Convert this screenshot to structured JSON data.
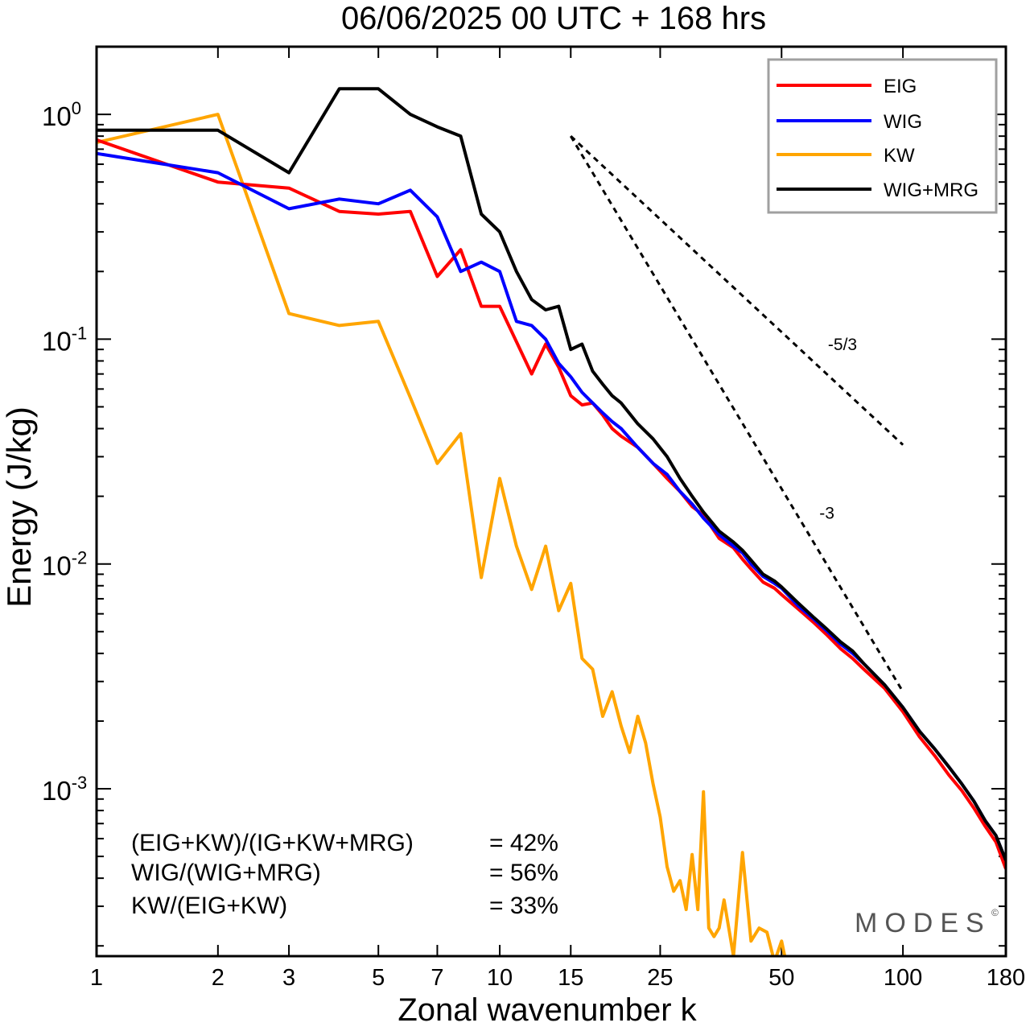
{
  "chart_data": {
    "type": "line",
    "title": "06/06/2025  00 UTC  + 168 hrs",
    "xlabel": "Zonal wavenumber k",
    "ylabel": "Energy (J/kg)",
    "xscale": "log",
    "yscale": "log",
    "xlim": [
      1,
      180
    ],
    "ylim": [
      0.00018,
      2.0
    ],
    "xticks": [
      1,
      2,
      3,
      5,
      7,
      10,
      15,
      25,
      50,
      100,
      180
    ],
    "xtick_labels": [
      "1",
      "2",
      "3",
      "5",
      "7",
      "10",
      "15",
      "25",
      "50",
      "100",
      "180"
    ],
    "ytick_labels": [
      {
        "value": 1,
        "base": "10",
        "exp": "0"
      },
      {
        "value": 0.1,
        "base": "10",
        "exp": "-1"
      },
      {
        "value": 0.01,
        "base": "10",
        "exp": "-2"
      },
      {
        "value": 0.001,
        "base": "10",
        "exp": "-3"
      }
    ],
    "legend_position": "top-right",
    "series": [
      {
        "name": "EIG",
        "color": "#ff0000",
        "x": [
          1,
          2,
          3,
          4,
          5,
          6,
          7,
          8,
          9,
          10,
          12,
          13,
          14,
          15,
          16,
          17,
          18,
          19,
          20,
          22,
          24,
          26,
          28,
          30,
          32,
          35,
          38,
          40,
          42,
          45,
          48,
          50,
          55,
          60,
          65,
          70,
          75,
          80,
          90,
          100,
          110,
          120,
          130,
          140,
          150,
          160,
          170,
          180
        ],
        "y": [
          0.77,
          0.5,
          0.47,
          0.37,
          0.36,
          0.37,
          0.19,
          0.25,
          0.14,
          0.14,
          0.07,
          0.095,
          0.075,
          0.056,
          0.051,
          0.052,
          0.046,
          0.04,
          0.037,
          0.033,
          0.028,
          0.024,
          0.021,
          0.018,
          0.0165,
          0.013,
          0.0118,
          0.0105,
          0.0095,
          0.0083,
          0.0078,
          0.0073,
          0.0063,
          0.0055,
          0.0048,
          0.0042,
          0.0038,
          0.0034,
          0.0028,
          0.0022,
          0.0017,
          0.0014,
          0.00115,
          0.00098,
          0.00082,
          0.00068,
          0.00058,
          0.00044
        ]
      },
      {
        "name": "WIG",
        "color": "#0000ff",
        "x": [
          1,
          2,
          3,
          4,
          5,
          6,
          7,
          8,
          9,
          10,
          11,
          12,
          13,
          14,
          15,
          16,
          17,
          18,
          19,
          20,
          22,
          24,
          26,
          28,
          30,
          32,
          35,
          38,
          40,
          42,
          45,
          48,
          50,
          55,
          60,
          65,
          70,
          75,
          80,
          90,
          100,
          110,
          120,
          130,
          140,
          150,
          160,
          170,
          180
        ],
        "y": [
          0.67,
          0.55,
          0.38,
          0.42,
          0.4,
          0.46,
          0.35,
          0.2,
          0.22,
          0.2,
          0.12,
          0.115,
          0.1,
          0.078,
          0.068,
          0.058,
          0.052,
          0.047,
          0.043,
          0.04,
          0.033,
          0.028,
          0.025,
          0.021,
          0.0185,
          0.016,
          0.0135,
          0.012,
          0.0112,
          0.01,
          0.0088,
          0.0082,
          0.0078,
          0.0065,
          0.0057,
          0.005,
          0.0044,
          0.004,
          0.0036,
          0.0029,
          0.0023,
          0.0018,
          0.0015,
          0.00125,
          0.00105,
          0.00088,
          0.00072,
          0.00062,
          0.00048
        ]
      },
      {
        "name": "KW",
        "color": "#ffa500",
        "x": [
          1,
          2,
          3,
          4,
          5,
          6,
          7,
          8,
          9,
          10,
          11,
          12,
          13,
          14,
          15,
          16,
          17,
          18,
          19,
          20,
          21,
          22,
          23,
          24,
          25,
          26,
          27,
          28,
          29,
          30,
          31,
          32,
          33,
          34,
          35,
          36,
          38,
          40,
          42,
          44,
          46,
          48,
          50,
          52,
          55
        ],
        "y": [
          0.75,
          1.0,
          0.13,
          0.115,
          0.12,
          0.055,
          0.028,
          0.038,
          0.0087,
          0.024,
          0.012,
          0.0077,
          0.012,
          0.0062,
          0.0082,
          0.0038,
          0.0034,
          0.0021,
          0.0027,
          0.0019,
          0.00145,
          0.0021,
          0.0016,
          0.00105,
          0.00075,
          0.00045,
          0.00035,
          0.00039,
          0.00029,
          0.00051,
          0.00029,
          0.00097,
          0.00024,
          0.00022,
          0.00024,
          0.00032,
          0.00018,
          0.00052,
          0.00021,
          0.00024,
          0.00023,
          0.00017,
          0.00021,
          0.00015,
          0.00014
        ]
      },
      {
        "name": "WIG+MRG",
        "color": "#000000",
        "x": [
          1,
          2,
          3,
          4,
          5,
          6,
          7,
          8,
          9,
          10,
          11,
          12,
          13,
          14,
          15,
          16,
          17,
          18,
          19,
          20,
          22,
          24,
          26,
          28,
          30,
          32,
          35,
          38,
          40,
          42,
          45,
          48,
          50,
          55,
          60,
          65,
          70,
          75,
          80,
          90,
          100,
          110,
          120,
          130,
          140,
          150,
          160,
          170,
          180
        ],
        "y": [
          0.85,
          0.85,
          0.55,
          1.3,
          1.3,
          1.0,
          0.88,
          0.8,
          0.36,
          0.3,
          0.2,
          0.15,
          0.135,
          0.14,
          0.09,
          0.095,
          0.072,
          0.063,
          0.056,
          0.052,
          0.042,
          0.036,
          0.03,
          0.024,
          0.02,
          0.017,
          0.014,
          0.0125,
          0.0115,
          0.0104,
          0.009,
          0.0084,
          0.0079,
          0.0067,
          0.0058,
          0.0051,
          0.0045,
          0.0041,
          0.0036,
          0.0029,
          0.0023,
          0.0018,
          0.0015,
          0.00125,
          0.00105,
          0.00088,
          0.00072,
          0.00062,
          0.00048
        ]
      }
    ],
    "annotations": [
      {
        "text": "-5/3",
        "slope": -1.6667,
        "x_range": [
          15,
          100
        ],
        "y_start": 0.8
      },
      {
        "text": "-3",
        "slope": -3,
        "x_range": [
          15,
          100
        ],
        "y_start": 0.8
      }
    ]
  },
  "stats": [
    {
      "label": "(EIG+KW)/(IG+KW+MRG)",
      "value": "= 42%"
    },
    {
      "label": "WIG/(WIG+MRG)",
      "value": "= 56%"
    },
    {
      "label": "KW/(EIG+KW)",
      "value": "= 33%"
    }
  ],
  "watermark": "MODES",
  "watermark_symbol": "©"
}
